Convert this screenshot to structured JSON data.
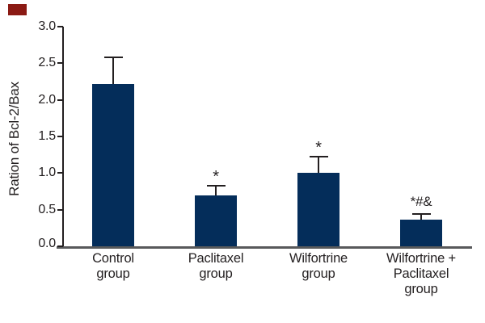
{
  "figure": {
    "corner_mark_color": "#8b1a14",
    "background_color": "#ffffff"
  },
  "chart_data": {
    "type": "bar",
    "title": "",
    "ylabel": "Ration of Bcl-2/Bax",
    "xlabel": "",
    "ylim": [
      0,
      3.0
    ],
    "ytick_step": 0.5,
    "ytick_labels": [
      "3.0",
      "2.5",
      "2.0",
      "1.5",
      "1.0",
      "0.5",
      "0.0"
    ],
    "grid": false,
    "legend": null,
    "bar_color": "#042d5a",
    "x_axis_line_color": "#58595b",
    "y_axis_line_color": "#231f20",
    "text_color": "#231f20",
    "categories": [
      "Control\ngroup",
      "Paclitaxel\ngroup",
      "Wilfortrine\ngroup",
      "Wilfortrine +\nPaclitaxel\ngroup"
    ],
    "series": [
      {
        "name": "Ration of Bcl-2/Bax",
        "values": [
          2.22,
          0.7,
          1.0,
          0.36
        ],
        "errors_plus": [
          0.36,
          0.13,
          0.22,
          0.08
        ]
      }
    ],
    "significance_annotations": [
      "",
      "*",
      "*",
      "*#&"
    ]
  }
}
